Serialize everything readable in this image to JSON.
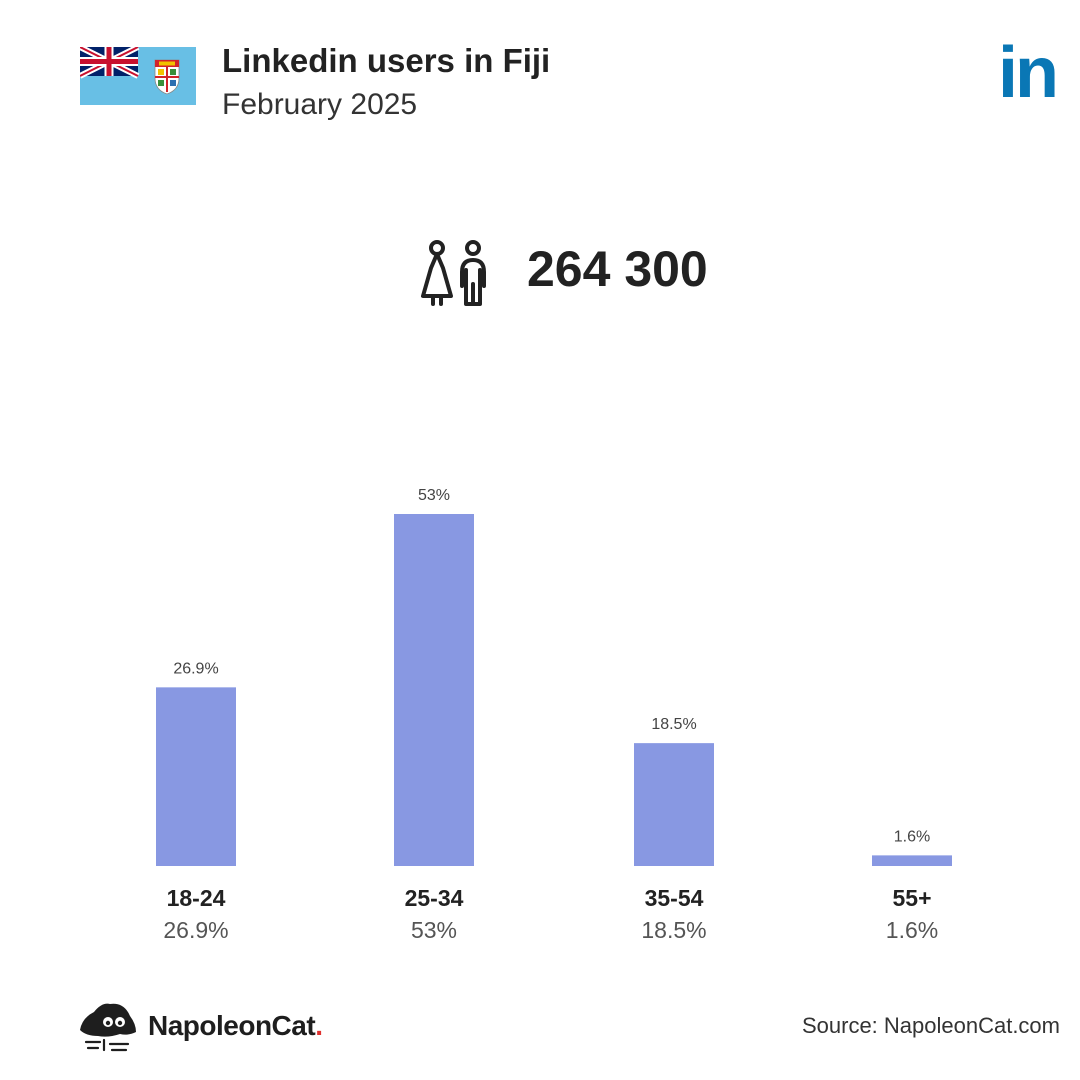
{
  "header": {
    "title": "Linkedin users in Fiji",
    "subtitle": "February 2025"
  },
  "total": {
    "value": "264 300",
    "icon": "users-icon"
  },
  "chart_data": {
    "type": "bar",
    "categories": [
      "18-24",
      "25-34",
      "35-54",
      "55+"
    ],
    "values": [
      26.9,
      53,
      18.5,
      1.6
    ],
    "value_labels": [
      "26.9%",
      "53%",
      "18.5%",
      "1.6%"
    ],
    "unit": "%",
    "bar_color": "#8898e2",
    "grid": false,
    "legend": "none"
  },
  "footer": {
    "logo_text": "NapoleonCat",
    "logo_dot": ".",
    "source": "Source: NapoleonCat.com"
  },
  "colors": {
    "brand_logo": "#0a77b5",
    "flag_blue": "#68bfe5",
    "text": "#222222"
  }
}
